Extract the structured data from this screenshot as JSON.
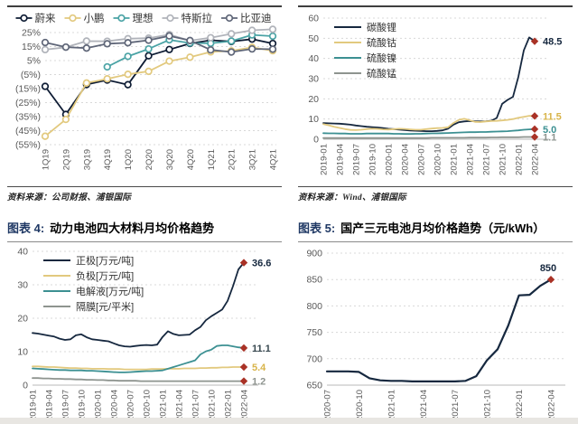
{
  "page": {
    "source_left": "资料来源：公司财报、浦银国际",
    "source_right": "资料来源：Wind、浦银国际",
    "figure4_label": "图表 4:",
    "figure4_title": "动力电池四大材料月均价格趋势",
    "figure5_label": "图表 5:",
    "figure5_title": "国产三元电池月均价格趋势（元/kWh）"
  },
  "colors": {
    "figure_label": "#1f3864",
    "diamond": "#a93226",
    "grid": "#d8d8d8",
    "axis_text": "#595959",
    "legend_text": "#333333"
  },
  "chart_data": [
    {
      "type": "line",
      "legend_position": "top",
      "x": [
        "1Q19",
        "2Q19",
        "3Q19",
        "4Q19",
        "1Q20",
        "2Q20",
        "3Q20",
        "4Q20",
        "1Q21",
        "2Q21",
        "3Q21",
        "4Q21"
      ],
      "tick_every": 1,
      "ylim": [
        -55,
        25
      ],
      "yticks": [
        25,
        15,
        5,
        -5,
        -15,
        -25,
        -35,
        -45,
        -55
      ],
      "ytick_labels": [
        "25%",
        "15%",
        "5%",
        "(5%)",
        "(15%)",
        "(25%)",
        "(35%)",
        "(45%)",
        "(55%)"
      ],
      "solid_at": 0,
      "series": [
        {
          "name": "蔚来",
          "color": "#0d1b33",
          "marker": true,
          "values": [
            -13.4,
            -33.4,
            -12.1,
            -8.9,
            -12.2,
            8.4,
            12.9,
            17.2,
            19.5,
            18.6,
            20.3,
            17.2
          ]
        },
        {
          "name": "小鹏",
          "color": "#e2c97e",
          "marker": true,
          "values": [
            -49,
            -37,
            -11,
            -8,
            -4.8,
            -2.7,
            4.6,
            7.4,
            11.2,
            11.9,
            14.4,
            12.0
          ]
        },
        {
          "name": "理想",
          "color": "#4aa3a5",
          "marker": true,
          "values": [
            null,
            null,
            null,
            0.5,
            8.0,
            13.3,
            19.8,
            17.5,
            17.3,
            18.9,
            23.3,
            22.4
          ]
        },
        {
          "name": "特斯拉",
          "color": "#b0b3ba",
          "marker": true,
          "values": [
            12.8,
            14.5,
            18.9,
            18.8,
            20.6,
            21.0,
            23.5,
            19.2,
            21.3,
            24.1,
            26.6,
            27.3
          ]
        },
        {
          "name": "比亚迪",
          "color": "#5f6678",
          "marker": true,
          "values": [
            17.9,
            14.6,
            13.9,
            17.0,
            17.7,
            19.5,
            22.6,
            19.3,
            12.6,
            11.1,
            13.3,
            13.1
          ]
        }
      ]
    },
    {
      "type": "line",
      "legend_position": "inside",
      "x": [
        "2019-01",
        "2019-02",
        "2019-03",
        "2019-04",
        "2019-05",
        "2019-06",
        "2019-07",
        "2019-08",
        "2019-09",
        "2019-10",
        "2019-11",
        "2019-12",
        "2020-01",
        "2020-02",
        "2020-03",
        "2020-04",
        "2020-05",
        "2020-06",
        "2020-07",
        "2020-08",
        "2020-09",
        "2020-10",
        "2020-11",
        "2020-12",
        "2021-01",
        "2021-02",
        "2021-03",
        "2021-04",
        "2021-05",
        "2021-06",
        "2021-07",
        "2021-08",
        "2021-09",
        "2021-10",
        "2021-11",
        "2021-12",
        "2022-01",
        "2022-02",
        "2022-03",
        "2022-04"
      ],
      "tick_every": 3,
      "ylim": [
        0,
        60
      ],
      "yticks": [
        60,
        50,
        40,
        30,
        20,
        10,
        0
      ],
      "solid_at": 0,
      "series": [
        {
          "name": "碳酸锂",
          "color": "#16283f",
          "end_label": {
            "text": "48.5",
            "color": "#16283f"
          },
          "values": [
            8.0,
            7.9,
            7.8,
            7.7,
            7.5,
            7.2,
            6.8,
            6.5,
            6.2,
            6.0,
            5.8,
            5.5,
            5.2,
            5.0,
            4.8,
            4.5,
            4.3,
            4.2,
            4.1,
            4.0,
            4.0,
            4.1,
            4.4,
            5.2,
            7.2,
            8.4,
            8.8,
            9.0,
            8.9,
            8.8,
            8.9,
            9.2,
            10.5,
            17.5,
            19.5,
            21.0,
            31.0,
            44.0,
            50.4,
            48.5
          ]
        },
        {
          "name": "硫酸钴",
          "color": "#e2c97e",
          "end_label": {
            "text": "11.5",
            "color": "#d8b44a"
          },
          "values": [
            7.5,
            6.9,
            6.2,
            5.6,
            5.0,
            4.6,
            4.5,
            4.7,
            5.0,
            5.2,
            5.1,
            4.9,
            4.8,
            5.0,
            5.2,
            5.1,
            4.9,
            4.7,
            4.7,
            5.0,
            5.3,
            5.5,
            5.6,
            5.9,
            8.0,
            9.6,
            10.1,
            9.4,
            8.6,
            8.5,
            8.8,
            9.0,
            9.1,
            9.3,
            9.6,
            10.0,
            10.6,
            11.1,
            11.6,
            11.5
          ]
        },
        {
          "name": "硫酸镍",
          "color": "#3c9092",
          "end_label": {
            "text": "5.0",
            "color": "#3c9092"
          },
          "values": [
            3.0,
            2.9,
            2.9,
            2.8,
            2.8,
            2.7,
            2.7,
            2.7,
            2.8,
            2.8,
            2.8,
            2.8,
            2.8,
            2.7,
            2.7,
            2.6,
            2.6,
            2.7,
            2.7,
            2.8,
            2.9,
            2.9,
            3.0,
            3.1,
            3.2,
            3.3,
            3.4,
            3.5,
            3.5,
            3.6,
            3.6,
            3.7,
            3.8,
            3.9,
            4.0,
            4.2,
            4.4,
            4.7,
            4.9,
            5.0
          ]
        },
        {
          "name": "硫酸锰",
          "color": "#8e948f",
          "end_label": {
            "text": "1.1",
            "color": "#8e948f"
          },
          "values": [
            0.6,
            0.6,
            0.6,
            0.6,
            0.6,
            0.6,
            0.6,
            0.6,
            0.6,
            0.6,
            0.6,
            0.6,
            0.6,
            0.6,
            0.6,
            0.6,
            0.6,
            0.6,
            0.6,
            0.6,
            0.7,
            0.7,
            0.7,
            0.7,
            0.7,
            0.7,
            0.7,
            0.8,
            0.8,
            0.8,
            0.8,
            0.9,
            0.9,
            1.0,
            1.0,
            1.0,
            1.0,
            1.1,
            1.1,
            1.1
          ]
        }
      ]
    },
    {
      "type": "line",
      "legend_position": "inside",
      "x": [
        "2019-01",
        "2019-02",
        "2019-03",
        "2019-04",
        "2019-05",
        "2019-06",
        "2019-07",
        "2019-08",
        "2019-09",
        "2019-10",
        "2019-11",
        "2019-12",
        "2020-01",
        "2020-02",
        "2020-03",
        "2020-04",
        "2020-05",
        "2020-06",
        "2020-07",
        "2020-08",
        "2020-09",
        "2020-10",
        "2020-11",
        "2020-12",
        "2021-01",
        "2021-02",
        "2021-03",
        "2021-04",
        "2021-05",
        "2021-06",
        "2021-07",
        "2021-08",
        "2021-09",
        "2021-10",
        "2021-11",
        "2021-12",
        "2022-01",
        "2022-02",
        "2022-03",
        "2022-04"
      ],
      "tick_every": 3,
      "ylim": [
        0,
        40
      ],
      "yticks": [
        40,
        30,
        20,
        10,
        0
      ],
      "solid_at": 0,
      "series": [
        {
          "name": "正极[万元/吨]",
          "color": "#16283f",
          "end_label": {
            "text": "36.6",
            "color": "#16283f"
          },
          "values": [
            15.6,
            15.4,
            15.1,
            14.8,
            14.5,
            13.9,
            13.5,
            13.7,
            14.9,
            15.2,
            14.3,
            13.7,
            13.5,
            13.3,
            13.1,
            12.5,
            11.9,
            11.6,
            11.5,
            11.7,
            11.9,
            12.0,
            11.9,
            12.1,
            14.4,
            16.1,
            15.3,
            14.9,
            15.0,
            15.1,
            16.4,
            17.4,
            19.4,
            20.6,
            21.6,
            22.6,
            25.2,
            29.6,
            34.6,
            36.6
          ]
        },
        {
          "name": "负极[万元/吨]",
          "color": "#e2c97e",
          "end_label": {
            "text": "5.4",
            "color": "#d8b44a"
          },
          "values": [
            5.6,
            5.6,
            5.5,
            5.4,
            5.4,
            5.3,
            5.2,
            5.1,
            5.1,
            5.0,
            5.0,
            4.9,
            4.9,
            4.9,
            4.8,
            4.8,
            4.8,
            4.7,
            4.7,
            4.7,
            4.7,
            4.7,
            4.8,
            4.8,
            4.8,
            4.9,
            4.9,
            4.9,
            5.0,
            5.0,
            5.0,
            5.1,
            5.1,
            5.2,
            5.2,
            5.3,
            5.3,
            5.4,
            5.4,
            5.4
          ]
        },
        {
          "name": "电解液[万元/吨]",
          "color": "#3c9092",
          "end_label": {
            "text": "11.1",
            "color": "#37474f"
          },
          "values": [
            5.0,
            4.9,
            4.8,
            4.7,
            4.6,
            4.5,
            4.5,
            4.4,
            4.4,
            4.4,
            4.3,
            4.3,
            4.2,
            4.1,
            4.0,
            3.9,
            3.8,
            3.8,
            3.9,
            4.0,
            4.1,
            4.2,
            4.2,
            4.3,
            4.4,
            4.9,
            5.4,
            5.9,
            6.4,
            6.9,
            7.4,
            9.2,
            10.1,
            10.6,
            11.7,
            11.9,
            11.9,
            11.6,
            11.3,
            11.1
          ]
        },
        {
          "name": "隔膜[元/平米]",
          "color": "#8e948f",
          "end_label": {
            "text": "1.2",
            "color": "#8e948f"
          },
          "values": [
            2.1,
            2.1,
            2.0,
            2.0,
            1.9,
            1.9,
            1.8,
            1.8,
            1.7,
            1.7,
            1.6,
            1.6,
            1.5,
            1.5,
            1.4,
            1.4,
            1.3,
            1.3,
            1.3,
            1.3,
            1.2,
            1.2,
            1.2,
            1.2,
            1.2,
            1.2,
            1.2,
            1.2,
            1.2,
            1.2,
            1.2,
            1.2,
            1.2,
            1.2,
            1.2,
            1.2,
            1.2,
            1.2,
            1.2,
            1.2
          ]
        }
      ]
    },
    {
      "type": "line",
      "legend_position": "none",
      "x": [
        "2020-07",
        "2020-08",
        "2020-09",
        "2020-10",
        "2020-11",
        "2020-12",
        "2021-01",
        "2021-02",
        "2021-03",
        "2021-04",
        "2021-05",
        "2021-06",
        "2021-07",
        "2021-08",
        "2021-09",
        "2021-10",
        "2021-11",
        "2021-12",
        "2022-01",
        "2022-02",
        "2022-03",
        "2022-04"
      ],
      "tick_every": 3,
      "ylim": [
        650,
        900
      ],
      "yticks": [
        900,
        850,
        800,
        750,
        700,
        650
      ],
      "solid_at": 650,
      "series": [
        {
          "name": "国产三元电池月均价格",
          "color": "#16283f",
          "end_label": {
            "text": "850",
            "color": "#16283f",
            "pos": "above"
          },
          "values": [
            676,
            676,
            676,
            675,
            663,
            659,
            658,
            658,
            657,
            657,
            657,
            657,
            657,
            658,
            667,
            697,
            718,
            763,
            820,
            821,
            838,
            850
          ]
        }
      ]
    }
  ]
}
